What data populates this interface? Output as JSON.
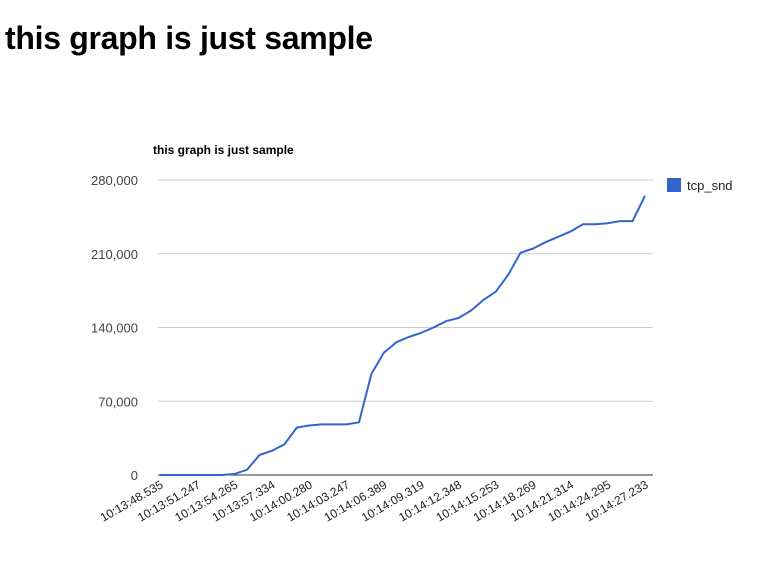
{
  "page": {
    "heading": "this graph is just sample"
  },
  "chart_data": {
    "type": "line",
    "title": "this graph is just sample",
    "xlabel": "",
    "ylabel": "",
    "ylim": [
      0,
      280000
    ],
    "y_ticks": [
      "0",
      "70,000",
      "140,000",
      "210,000",
      "280,000"
    ],
    "y_tick_values": [
      0,
      70000,
      140000,
      210000,
      280000
    ],
    "grid": true,
    "legend_position": "right",
    "x_tick_labels": [
      "10:13:48.535",
      "10:13:51.247",
      "10:13:54.265",
      "10:13:57.334",
      "10:14:00.280",
      "10:14:03.247",
      "10:14:06.389",
      "10:14:09.319",
      "10:14:12.348",
      "10:14:15.253",
      "10:14:18.269",
      "10:14:21.314",
      "10:14:24.295",
      "10:14:27.233"
    ],
    "x_tick_every": 3,
    "series": [
      {
        "name": "tcp_snd",
        "color": "#3366cc",
        "values": [
          0,
          0,
          0,
          0,
          0,
          0,
          1000,
          5000,
          19000,
          23000,
          29000,
          45000,
          47000,
          48000,
          48000,
          48000,
          50000,
          96000,
          116000,
          126000,
          131000,
          135000,
          140000,
          146000,
          149000,
          156000,
          166000,
          174000,
          190000,
          211000,
          215000,
          221000,
          226000,
          231000,
          238000,
          238000,
          239000,
          241000,
          241000,
          265000
        ]
      }
    ]
  }
}
